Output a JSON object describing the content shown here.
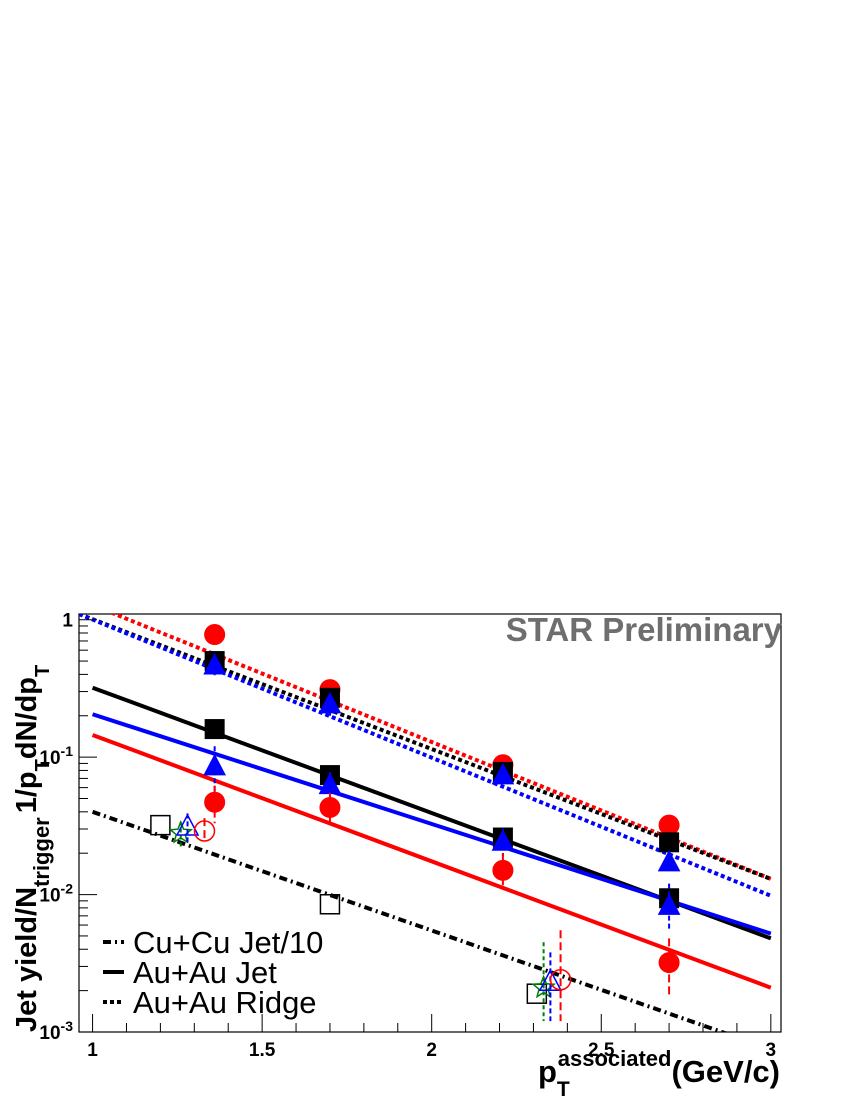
{
  "chart_data": {
    "type": "scatter",
    "y_scale": "log",
    "xlim": [
      0.96,
      3.03
    ],
    "ylim": [
      0.001,
      1.1
    ],
    "x_ticks": [
      {
        "value": 1,
        "label": "1"
      },
      {
        "value": 1.5,
        "label": "1.5"
      },
      {
        "value": 2,
        "label": "2"
      },
      {
        "value": 2.5,
        "label": "2.5"
      },
      {
        "value": 3,
        "label": "3"
      }
    ],
    "y_ticks": [
      {
        "value": 0.001,
        "base": "10",
        "exp": "-3"
      },
      {
        "value": 0.01,
        "base": "10",
        "exp": "-2"
      },
      {
        "value": 0.1,
        "base": "10",
        "exp": "-1"
      },
      {
        "value": 1,
        "base": "1",
        "exp": ""
      }
    ],
    "xlabel": {
      "p": "p",
      "sub": "T",
      "sup": "associated",
      "unit": "(GeV/c)"
    },
    "ylabel": {
      "part1": "Jet yield/N",
      "sub1": "trigger",
      "part2": "1/p",
      "sub2": "T",
      "part3": "dN/dp",
      "sub3": "T"
    },
    "watermark": "STAR Preliminary",
    "legend": [
      {
        "label": "Cu+Cu Jet/10",
        "style": "dashdot"
      },
      {
        "label": "Au+Au Jet",
        "style": "solid"
      },
      {
        "label": "Au+Au Ridge",
        "style": "dotted"
      }
    ],
    "fits": [
      {
        "color": "#ff0000",
        "style": "dotted",
        "x": [
          0.96,
          3.0
        ],
        "y": [
          1.4,
          0.013
        ]
      },
      {
        "color": "#000000",
        "style": "dotted",
        "x": [
          0.96,
          3.0
        ],
        "y": [
          1.1,
          0.013
        ]
      },
      {
        "color": "#0000ff",
        "style": "dotted",
        "x": [
          0.96,
          3.0
        ],
        "y": [
          1.1,
          0.0098
        ]
      },
      {
        "color": "#000000",
        "style": "solid",
        "x": [
          1.0,
          3.0
        ],
        "y": [
          0.32,
          0.0048
        ]
      },
      {
        "color": "#0000ff",
        "style": "solid",
        "x": [
          1.0,
          3.0
        ],
        "y": [
          0.205,
          0.0052
        ]
      },
      {
        "color": "#ff0000",
        "style": "solid",
        "x": [
          1.0,
          3.0
        ],
        "y": [
          0.145,
          0.0021
        ]
      },
      {
        "color": "#000000",
        "style": "dashdot",
        "x": [
          1.0,
          3.0
        ],
        "y": [
          0.04,
          0.00075
        ]
      }
    ],
    "series": [
      {
        "color": "#ff0000",
        "marker": "circle",
        "filled": true,
        "points": [
          [
            1.36,
            0.78
          ],
          [
            1.7,
            0.31
          ],
          [
            2.21,
            0.088
          ],
          [
            2.7,
            0.032
          ]
        ],
        "errors": []
      },
      {
        "color": "#000000",
        "marker": "square",
        "filled": true,
        "points": [
          [
            1.36,
            0.5
          ],
          [
            1.7,
            0.27
          ],
          [
            2.21,
            0.078
          ],
          [
            2.7,
            0.024
          ]
        ],
        "errors": []
      },
      {
        "color": "#0000ff",
        "marker": "triangle",
        "filled": true,
        "points": [
          [
            1.36,
            0.46
          ],
          [
            1.7,
            0.24
          ],
          [
            2.21,
            0.073
          ],
          [
            2.7,
            0.017
          ]
        ],
        "errors": [
          [
            0.38,
            0.56
          ],
          [
            0.2,
            0.28
          ]
        ]
      },
      {
        "color": "#000000",
        "marker": "square",
        "filled": true,
        "points": [
          [
            1.36,
            0.16
          ],
          [
            1.7,
            0.074
          ],
          [
            2.21,
            0.026
          ],
          [
            2.7,
            0.0094
          ]
        ],
        "errors": []
      },
      {
        "color": "#0000ff",
        "marker": "triangle",
        "filled": true,
        "points": [
          [
            1.36,
            0.085
          ],
          [
            1.7,
            0.062
          ],
          [
            2.21,
            0.024
          ],
          [
            2.7,
            0.0082
          ]
        ],
        "errors": [
          [
            0.055,
            0.12
          ],
          [
            0.05,
            0.078
          ],
          [
            0.019,
            0.03
          ],
          [
            0.0055,
            0.012
          ]
        ]
      },
      {
        "color": "#ff0000",
        "marker": "circle",
        "filled": true,
        "points": [
          [
            1.36,
            0.047
          ],
          [
            1.7,
            0.043
          ],
          [
            2.21,
            0.015
          ],
          [
            2.7,
            0.0032
          ]
        ],
        "errors": [
          [
            0.033,
            0.062
          ],
          [
            0.031,
            0.055
          ],
          [
            0.011,
            0.02
          ],
          [
            0.0018,
            0.0048
          ]
        ]
      },
      {
        "color": "#000000",
        "marker": "square",
        "filled": false,
        "points": [
          [
            1.2,
            0.032
          ],
          [
            1.7,
            0.0085
          ],
          [
            2.31,
            0.0019
          ]
        ],
        "errors": []
      },
      {
        "color": "#008000",
        "marker": "star",
        "filled": false,
        "points": [
          [
            1.26,
            0.028
          ],
          [
            2.33,
            0.0021
          ]
        ],
        "errors": [
          [
            0.022,
            0.034
          ],
          [
            0.0012,
            0.0045
          ]
        ]
      },
      {
        "color": "#0000ff",
        "marker": "triangle",
        "filled": false,
        "points": [
          [
            1.28,
            0.031
          ],
          [
            2.35,
            0.0023
          ]
        ],
        "errors": [
          [
            0.024,
            0.039
          ],
          [
            0.0012,
            0.0038
          ]
        ]
      },
      {
        "color": "#ff0000",
        "marker": "circle",
        "filled": false,
        "points": [
          [
            1.33,
            0.029
          ],
          [
            2.38,
            0.0024
          ]
        ],
        "errors": [
          [
            0.024,
            0.036
          ],
          [
            0.0012,
            0.0055
          ]
        ]
      }
    ]
  }
}
